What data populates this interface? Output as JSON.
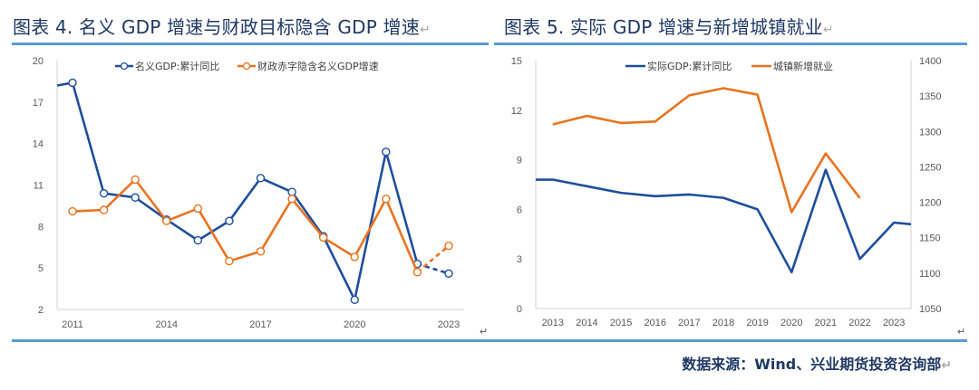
{
  "titles": {
    "left": "图表 4. 名义 GDP 增速与财政目标隐含 GDP 增速",
    "right": "图表 5. 实际 GDP 增速与新增城镇就业",
    "return_mark": "↵"
  },
  "source": "数据来源：Wind、兴业期货投资咨询部",
  "colors": {
    "blue": "#1f4e9c",
    "orange": "#e8731f",
    "rule": "#5b9bd5"
  },
  "chart_data": [
    {
      "type": "line",
      "title": "名义 GDP 增速与财政目标隐含 GDP 增速",
      "xlabel": "",
      "ylabel": "",
      "x": [
        2011,
        2012,
        2013,
        2014,
        2015,
        2016,
        2017,
        2018,
        2019,
        2020,
        2021,
        2022,
        2023
      ],
      "x_tick_labels": [
        "2011",
        "2014",
        "2017",
        "2020",
        "2023"
      ],
      "ylim": [
        2,
        20
      ],
      "y_ticks": [
        2,
        5,
        8,
        11,
        14,
        17,
        20
      ],
      "legend_position": "top",
      "grid": false,
      "series": [
        {
          "name": "名义GDP:累计同比",
          "color": "blue",
          "lead_in": 18.2,
          "values": [
            18.4,
            10.4,
            10.1,
            8.5,
            7.0,
            8.4,
            11.5,
            10.5,
            7.3,
            2.7,
            13.4,
            5.3,
            4.6
          ],
          "dashed_from": 2022
        },
        {
          "name": "财政赤字隐含名义GDP增速",
          "color": "orange",
          "values": [
            9.1,
            9.2,
            11.4,
            8.4,
            9.3,
            5.5,
            6.2,
            10.0,
            7.2,
            5.8,
            10.0,
            4.7,
            6.6
          ],
          "dashed_from": 2022
        }
      ]
    },
    {
      "type": "line",
      "title": "实际 GDP 增速与新增城镇就业",
      "xlabel": "",
      "ylabel": "",
      "x": [
        2013,
        2014,
        2015,
        2016,
        2017,
        2018,
        2019,
        2020,
        2021,
        2022,
        2023
      ],
      "x_tick_labels": [
        "2013",
        "2014",
        "2015",
        "2016",
        "2017",
        "2018",
        "2019",
        "2020",
        "2021",
        "2022",
        "2023"
      ],
      "ylim": [
        0,
        15
      ],
      "y_ticks": [
        0,
        3,
        6,
        9,
        12,
        15
      ],
      "y2lim": [
        1050,
        1400
      ],
      "y2_ticks": [
        1050,
        1100,
        1150,
        1200,
        1250,
        1300,
        1350,
        1400
      ],
      "legend_position": "top",
      "grid": false,
      "series": [
        {
          "name": "实际GDP:累计同比",
          "color": "blue",
          "axis": "left",
          "lead_in": 7.8,
          "lead_out": 5.1,
          "values": [
            7.8,
            7.4,
            7.0,
            6.8,
            6.9,
            6.7,
            6.0,
            2.2,
            8.4,
            3.0,
            5.2
          ]
        },
        {
          "name": "城镇新增就业",
          "color": "orange",
          "axis": "right",
          "values": [
            1310,
            1322,
            1312,
            1314,
            1351,
            1361,
            1352,
            1186,
            1269,
            1206,
            null
          ]
        }
      ]
    }
  ]
}
